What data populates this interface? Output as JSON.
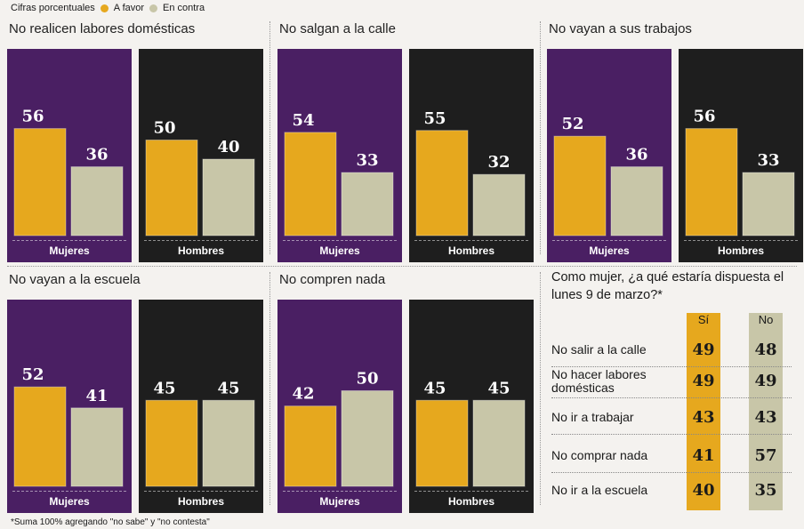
{
  "legend": {
    "title": "Cifras porcentuales",
    "items": [
      {
        "label": "A favor",
        "color": "#e6a81e"
      },
      {
        "label": "En contra",
        "color": "#c8c6a8"
      }
    ]
  },
  "colors": {
    "mujeres_bg": "#4a1f63",
    "hombres_bg": "#1e1e1e",
    "favor": "#e6a81e",
    "contra": "#c8c6a8"
  },
  "chart_data": [
    {
      "type": "bar",
      "title": "No realicen labores domésticas",
      "categories": [
        "Mujeres",
        "Hombres"
      ],
      "series": [
        {
          "name": "A favor",
          "values": [
            56,
            50
          ]
        },
        {
          "name": "En contra",
          "values": [
            36,
            40
          ]
        }
      ]
    },
    {
      "type": "bar",
      "title": "No salgan a la calle",
      "categories": [
        "Mujeres",
        "Hombres"
      ],
      "series": [
        {
          "name": "A favor",
          "values": [
            54,
            55
          ]
        },
        {
          "name": "En contra",
          "values": [
            33,
            32
          ]
        }
      ]
    },
    {
      "type": "bar",
      "title": "No vayan a sus trabajos",
      "categories": [
        "Mujeres",
        "Hombres"
      ],
      "series": [
        {
          "name": "A favor",
          "values": [
            52,
            56
          ]
        },
        {
          "name": "En contra",
          "values": [
            36,
            33
          ]
        }
      ]
    },
    {
      "type": "bar",
      "title": "No vayan a la escuela",
      "categories": [
        "Mujeres",
        "Hombres"
      ],
      "series": [
        {
          "name": "A favor",
          "values": [
            52,
            45
          ]
        },
        {
          "name": "En contra",
          "values": [
            41,
            45
          ]
        }
      ]
    },
    {
      "type": "bar",
      "title": "No compren nada",
      "categories": [
        "Mujeres",
        "Hombres"
      ],
      "series": [
        {
          "name": "A favor",
          "values": [
            42,
            45
          ]
        },
        {
          "name": "En contra",
          "values": [
            50,
            45
          ]
        }
      ]
    },
    {
      "type": "table",
      "title": "Como mujer, ¿a qué estaría dispuesta el lunes 9 de marzo?*",
      "columns": [
        "Sí",
        "No"
      ],
      "rows": [
        {
          "label": "No salir a la calle",
          "values": [
            49,
            48
          ]
        },
        {
          "label": "No hacer labores domésticas",
          "values": [
            49,
            49
          ]
        },
        {
          "label": "No ir a trabajar",
          "values": [
            43,
            43
          ]
        },
        {
          "label": "No comprar nada",
          "values": [
            41,
            57
          ]
        },
        {
          "label": "No ir a la escuela",
          "values": [
            40,
            35
          ]
        }
      ]
    }
  ],
  "footnote": "*Suma 100% agregando \"no sabe\" y \"no contesta\""
}
